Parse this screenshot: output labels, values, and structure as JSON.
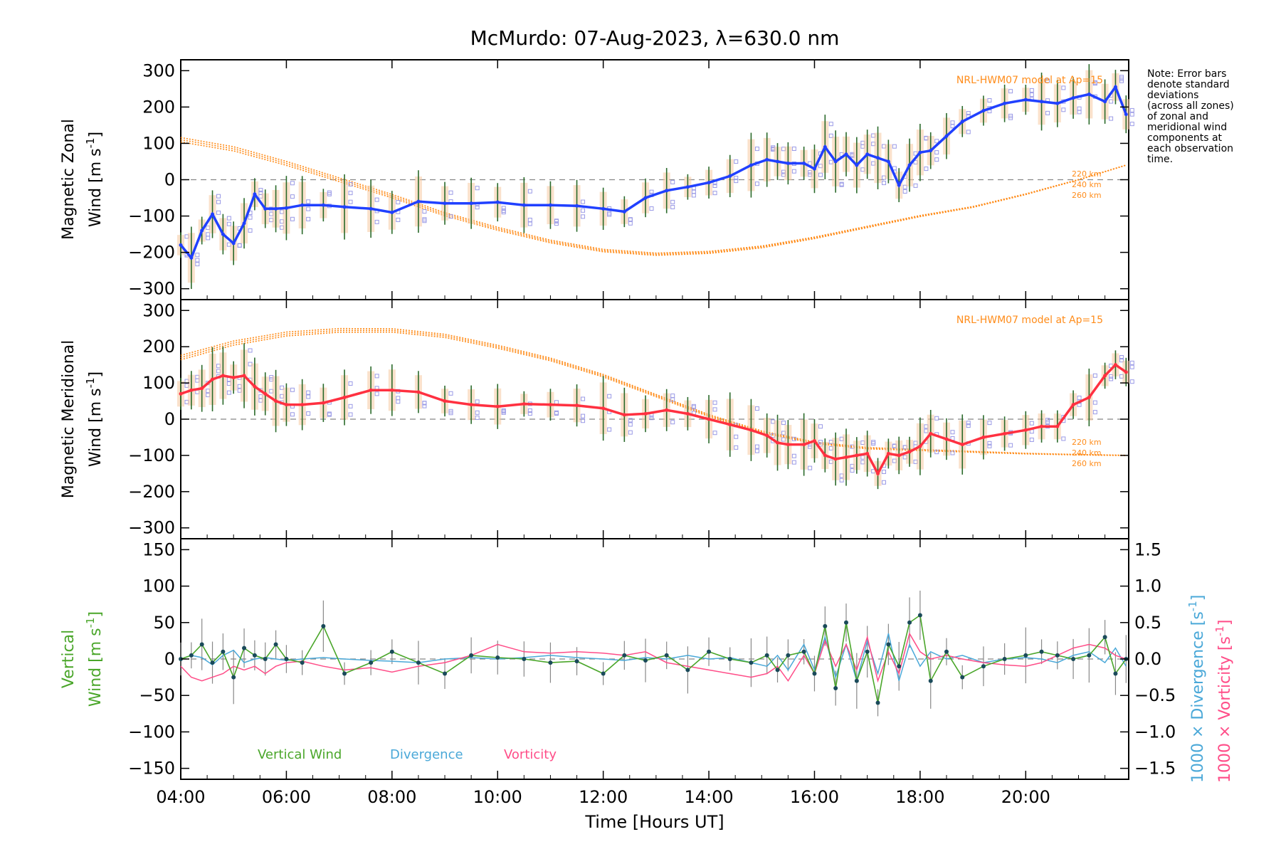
{
  "title": "McMurdo: 07-Aug-2023, λ=630.0 nm",
  "note": [
    "Note: Error bars",
    "denote standard",
    "deviations",
    "(across all zones)",
    "of zonal and",
    "meridional wind",
    "components at",
    "each observation",
    "time."
  ],
  "colors": {
    "zonal": "#2040ff",
    "meridional": "#ff3040",
    "model": "#ff8c1a",
    "vertical": "#4aa62a",
    "divergence": "#4aa8d8",
    "vorticity": "#ff4d88",
    "samples": "#9a9ae6"
  },
  "chart_data": [
    {
      "type": "line",
      "name": "zonal",
      "ylabel": [
        "Magnetic Zonal",
        "Wind [m s",
        "-1",
        "]"
      ],
      "ylim": [
        -330,
        330
      ],
      "yticks": [
        300,
        200,
        100,
        0,
        -100,
        -200,
        -300
      ],
      "model_label": "NRL-HWM07 model at Ap=15",
      "altitudes": [
        "220 km",
        "240 km",
        "260 km"
      ],
      "model_x": [
        4,
        5,
        6,
        7,
        8,
        9,
        10,
        11,
        12,
        13,
        14,
        15,
        16,
        17,
        18,
        19,
        20,
        21,
        21.9
      ],
      "model_y": [
        110,
        85,
        45,
        0,
        -45,
        -95,
        -135,
        -170,
        -195,
        -205,
        -200,
        -185,
        -160,
        -130,
        -100,
        -75,
        -40,
        0,
        40
      ],
      "x": [
        4.0,
        4.2,
        4.4,
        4.6,
        4.8,
        5.0,
        5.2,
        5.4,
        5.6,
        5.8,
        6.0,
        6.3,
        6.7,
        7.1,
        7.6,
        8.0,
        8.5,
        9.0,
        9.5,
        10.0,
        10.5,
        11.0,
        11.5,
        12.0,
        12.4,
        12.8,
        13.2,
        13.6,
        14.0,
        14.4,
        14.8,
        15.1,
        15.3,
        15.5,
        15.8,
        16.0,
        16.2,
        16.4,
        16.6,
        16.8,
        17.0,
        17.2,
        17.4,
        17.6,
        17.8,
        18.0,
        18.2,
        18.5,
        18.8,
        19.2,
        19.6,
        20.0,
        20.3,
        20.6,
        20.9,
        21.2,
        21.5,
        21.7,
        21.9
      ],
      "values": [
        -180,
        -215,
        -140,
        -95,
        -150,
        -175,
        -120,
        -40,
        -80,
        -80,
        -78,
        -70,
        -70,
        -75,
        -80,
        -90,
        -60,
        -65,
        -65,
        -62,
        -70,
        -70,
        -72,
        -80,
        -88,
        -50,
        -30,
        -20,
        -8,
        10,
        40,
        55,
        50,
        45,
        45,
        30,
        90,
        50,
        70,
        40,
        70,
        60,
        50,
        -15,
        40,
        75,
        80,
        120,
        160,
        190,
        210,
        220,
        215,
        210,
        225,
        235,
        215,
        255,
        180
      ]
    },
    {
      "type": "line",
      "name": "meridional",
      "ylabel": [
        "Magnetic Meridional",
        "Wind [m s",
        "-1",
        "]"
      ],
      "ylim": [
        -330,
        330
      ],
      "yticks": [
        300,
        200,
        100,
        0,
        -100,
        -200,
        -300
      ],
      "model_label": "NRL-HWM07 model at Ap=15",
      "altitudes": [
        "220 km",
        "240 km",
        "260 km"
      ],
      "model_x": [
        4,
        5,
        6,
        7,
        8,
        9,
        10,
        11,
        12,
        13,
        14,
        15,
        16,
        17,
        18,
        19,
        20,
        21,
        21.9
      ],
      "model_y": [
        170,
        210,
        235,
        245,
        245,
        230,
        200,
        165,
        120,
        65,
        10,
        -35,
        -65,
        -80,
        -85,
        -90,
        -95,
        -98,
        -100
      ],
      "x": [
        4.0,
        4.2,
        4.4,
        4.6,
        4.8,
        5.0,
        5.2,
        5.4,
        5.6,
        5.8,
        6.0,
        6.3,
        6.7,
        7.1,
        7.6,
        8.0,
        8.5,
        9.0,
        9.5,
        10.0,
        10.5,
        11.0,
        11.5,
        12.0,
        12.4,
        12.8,
        13.2,
        13.6,
        14.0,
        14.4,
        14.8,
        15.1,
        15.3,
        15.5,
        15.8,
        16.0,
        16.2,
        16.4,
        16.6,
        16.8,
        17.0,
        17.2,
        17.4,
        17.6,
        17.8,
        18.0,
        18.2,
        18.5,
        18.8,
        19.2,
        19.6,
        20.0,
        20.3,
        20.6,
        20.9,
        21.2,
        21.5,
        21.7,
        21.9
      ],
      "values": [
        70,
        80,
        85,
        110,
        120,
        115,
        120,
        90,
        70,
        50,
        40,
        40,
        45,
        60,
        80,
        80,
        75,
        50,
        40,
        35,
        42,
        40,
        38,
        30,
        12,
        15,
        25,
        15,
        0,
        -15,
        -30,
        -45,
        -65,
        -70,
        -70,
        -60,
        -100,
        -110,
        -105,
        -100,
        -95,
        -150,
        -95,
        -100,
        -90,
        -75,
        -40,
        -55,
        -70,
        -50,
        -40,
        -30,
        -20,
        -20,
        40,
        60,
        120,
        150,
        130
      ]
    },
    {
      "type": "line",
      "name": "vertical",
      "ylabel": [
        "Vertical",
        "Wind [m s",
        "-1",
        "]"
      ],
      "ylim": [
        -165,
        165
      ],
      "yticks": [
        150,
        100,
        50,
        0,
        -50,
        -100,
        -150
      ],
      "right_ylim": [
        -1.65,
        1.65
      ],
      "right_yticks": [
        "1.5",
        "1.0",
        "0.5",
        "0.0",
        "−0.5",
        "−1.0",
        "−1.5"
      ],
      "right_labels": [
        "1000 × Divergence [s",
        "1000 × Vorticity [s"
      ],
      "legend": [
        "Vertical Wind",
        "Divergence",
        "Vorticity"
      ],
      "x": [
        4.0,
        4.2,
        4.4,
        4.6,
        4.8,
        5.0,
        5.2,
        5.4,
        5.6,
        5.8,
        6.0,
        6.3,
        6.7,
        7.1,
        7.6,
        8.0,
        8.5,
        9.0,
        9.5,
        10.0,
        10.5,
        11.0,
        11.5,
        12.0,
        12.4,
        12.8,
        13.2,
        13.6,
        14.0,
        14.4,
        14.8,
        15.1,
        15.3,
        15.5,
        15.8,
        16.0,
        16.2,
        16.4,
        16.6,
        16.8,
        17.0,
        17.2,
        17.4,
        17.6,
        17.8,
        18.0,
        18.2,
        18.5,
        18.8,
        19.2,
        19.6,
        20.0,
        20.3,
        20.6,
        20.9,
        21.2,
        21.5,
        21.7,
        21.9
      ],
      "values": [
        0,
        5,
        20,
        -5,
        10,
        -25,
        15,
        5,
        0,
        20,
        0,
        -5,
        45,
        -20,
        -5,
        10,
        -5,
        -20,
        5,
        2,
        0,
        -5,
        -3,
        -20,
        5,
        -2,
        5,
        -15,
        10,
        0,
        -5,
        5,
        -15,
        5,
        10,
        -20,
        45,
        -40,
        50,
        -30,
        10,
        -60,
        20,
        -10,
        50,
        60,
        -30,
        10,
        -25,
        -10,
        0,
        5,
        10,
        5,
        0,
        5,
        30,
        -20,
        0
      ],
      "divergence": [
        0.0,
        0.05,
        0.02,
        -0.08,
        0.05,
        0.12,
        -0.05,
        0.0,
        0.02,
        0.0,
        -0.02,
        0.0,
        0.02,
        0.0,
        -0.02,
        -0.03,
        -0.05,
        0.0,
        0.02,
        0.0,
        0.02,
        0.05,
        0.02,
        0.0,
        -0.02,
        0.02,
        0.0,
        0.05,
        0.0,
        0.02,
        -0.05,
        -0.1,
        0.05,
        -0.15,
        0.2,
        -0.15,
        0.3,
        -0.25,
        0.2,
        -0.3,
        0.25,
        -0.2,
        0.35,
        -0.3,
        0.2,
        -0.1,
        0.1,
        0.0,
        0.05,
        -0.05,
        0.0,
        0.02,
        0.0,
        -0.05,
        0.05,
        0.1,
        -0.05,
        0.15,
        -0.1
      ],
      "vorticity": [
        -0.1,
        -0.25,
        -0.3,
        -0.25,
        -0.2,
        -0.1,
        -0.15,
        -0.1,
        -0.2,
        -0.1,
        -0.05,
        -0.03,
        -0.1,
        -0.15,
        -0.12,
        -0.18,
        -0.1,
        -0.05,
        0.05,
        0.2,
        0.1,
        0.08,
        0.1,
        0.08,
        0.05,
        0.1,
        -0.05,
        -0.1,
        -0.15,
        -0.2,
        -0.25,
        -0.2,
        -0.1,
        -0.3,
        0.05,
        -0.2,
        0.25,
        -0.1,
        0.2,
        -0.15,
        0.3,
        -0.3,
        0.1,
        -0.2,
        0.35,
        0.1,
        0.0,
        0.05,
        0.0,
        -0.05,
        -0.08,
        -0.1,
        -0.05,
        0.05,
        0.15,
        0.2,
        0.15,
        0.05,
        0.0
      ]
    }
  ],
  "xaxis": {
    "xlim": [
      4.0,
      21.95
    ],
    "ticks": [
      4,
      6,
      8,
      10,
      12,
      14,
      16,
      18,
      20
    ],
    "tick_labels": [
      "04:00",
      "06:00",
      "08:00",
      "10:00",
      "12:00",
      "14:00",
      "16:00",
      "18:00",
      "20:00"
    ],
    "label": "Time [Hours UT]"
  }
}
